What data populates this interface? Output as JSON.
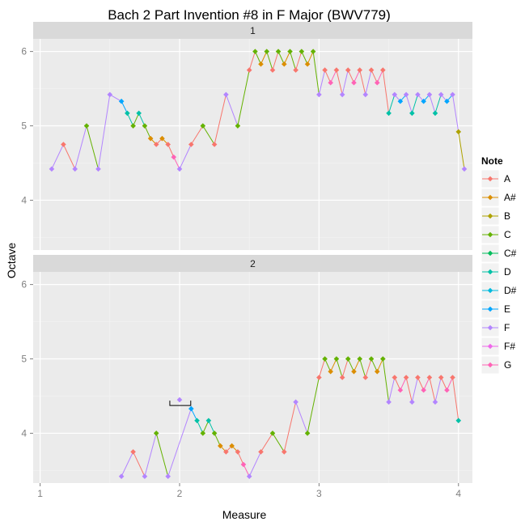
{
  "chart_data": {
    "type": "line",
    "title": "Bach 2 Part Invention #8 in F Major (BWV779)",
    "xlabel": "Measure",
    "ylabel": "Octave",
    "xlim": [
      0.95,
      4.1
    ],
    "ylim": [
      3.33,
      6.17
    ],
    "xticks": [
      "1",
      "2",
      "3",
      "4"
    ],
    "xtick_values": [
      1,
      2,
      3,
      4
    ],
    "yticks": [
      "4",
      "5",
      "6"
    ],
    "ytick_values": [
      4,
      5,
      6
    ],
    "grid": true,
    "legend": {
      "title": "Note",
      "position": "right",
      "entries": [
        {
          "label": "A",
          "color": "#F8766D"
        },
        {
          "label": "A#",
          "color": "#DB8E00"
        },
        {
          "label": "B",
          "color": "#AEA200"
        },
        {
          "label": "C",
          "color": "#64B200"
        },
        {
          "label": "C#",
          "color": "#00BD5C"
        },
        {
          "label": "D",
          "color": "#00C1A7"
        },
        {
          "label": "D#",
          "color": "#00BADE"
        },
        {
          "label": "E",
          "color": "#00A6FF"
        },
        {
          "label": "F",
          "color": "#B385FF"
        },
        {
          "label": "F#",
          "color": "#EF67EB"
        },
        {
          "label": "G",
          "color": "#FF63B6"
        }
      ]
    },
    "panels": [
      {
        "strip": "1",
        "points": [
          {
            "x": 1.083,
            "y": 4.42,
            "note": "F"
          },
          {
            "x": 1.167,
            "y": 4.75,
            "note": "A"
          },
          {
            "x": 1.25,
            "y": 4.42,
            "note": "F"
          },
          {
            "x": 1.333,
            "y": 5.0,
            "note": "C"
          },
          {
            "x": 1.417,
            "y": 4.42,
            "note": "F"
          },
          {
            "x": 1.5,
            "y": 5.42,
            "note": "F"
          },
          {
            "x": 1.583,
            "y": 5.33,
            "note": "E"
          },
          {
            "x": 1.625,
            "y": 5.17,
            "note": "D"
          },
          {
            "x": 1.667,
            "y": 5.0,
            "note": "C"
          },
          {
            "x": 1.708,
            "y": 5.17,
            "note": "D"
          },
          {
            "x": 1.75,
            "y": 5.0,
            "note": "C"
          },
          {
            "x": 1.792,
            "y": 4.83,
            "note": "A#"
          },
          {
            "x": 1.833,
            "y": 4.75,
            "note": "A"
          },
          {
            "x": 1.875,
            "y": 4.83,
            "note": "A#"
          },
          {
            "x": 1.917,
            "y": 4.75,
            "note": "A"
          },
          {
            "x": 1.958,
            "y": 4.58,
            "note": "G"
          },
          {
            "x": 2.0,
            "y": 4.42,
            "note": "F"
          },
          {
            "x": 2.083,
            "y": 4.75,
            "note": "A"
          },
          {
            "x": 2.167,
            "y": 5.0,
            "note": "C"
          },
          {
            "x": 2.25,
            "y": 4.75,
            "note": "A"
          },
          {
            "x": 2.333,
            "y": 5.42,
            "note": "F"
          },
          {
            "x": 2.417,
            "y": 5.0,
            "note": "C"
          },
          {
            "x": 2.5,
            "y": 5.75,
            "note": "A"
          },
          {
            "x": 2.542,
            "y": 6.0,
            "note": "C"
          },
          {
            "x": 2.583,
            "y": 5.83,
            "note": "A#"
          },
          {
            "x": 2.625,
            "y": 6.0,
            "note": "C"
          },
          {
            "x": 2.667,
            "y": 5.75,
            "note": "A"
          },
          {
            "x": 2.708,
            "y": 6.0,
            "note": "C"
          },
          {
            "x": 2.75,
            "y": 5.83,
            "note": "A#"
          },
          {
            "x": 2.792,
            "y": 6.0,
            "note": "C"
          },
          {
            "x": 2.833,
            "y": 5.75,
            "note": "A"
          },
          {
            "x": 2.875,
            "y": 6.0,
            "note": "C"
          },
          {
            "x": 2.917,
            "y": 5.83,
            "note": "A#"
          },
          {
            "x": 2.958,
            "y": 6.0,
            "note": "C"
          },
          {
            "x": 3.0,
            "y": 5.42,
            "note": "F"
          },
          {
            "x": 3.042,
            "y": 5.75,
            "note": "A"
          },
          {
            "x": 3.083,
            "y": 5.58,
            "note": "G"
          },
          {
            "x": 3.125,
            "y": 5.75,
            "note": "A"
          },
          {
            "x": 3.167,
            "y": 5.42,
            "note": "F"
          },
          {
            "x": 3.208,
            "y": 5.75,
            "note": "A"
          },
          {
            "x": 3.25,
            "y": 5.58,
            "note": "G"
          },
          {
            "x": 3.292,
            "y": 5.75,
            "note": "A"
          },
          {
            "x": 3.333,
            "y": 5.42,
            "note": "F"
          },
          {
            "x": 3.375,
            "y": 5.75,
            "note": "A"
          },
          {
            "x": 3.417,
            "y": 5.58,
            "note": "G"
          },
          {
            "x": 3.458,
            "y": 5.75,
            "note": "A"
          },
          {
            "x": 3.5,
            "y": 5.17,
            "note": "D"
          },
          {
            "x": 3.542,
            "y": 5.42,
            "note": "F"
          },
          {
            "x": 3.583,
            "y": 5.33,
            "note": "E"
          },
          {
            "x": 3.625,
            "y": 5.42,
            "note": "F"
          },
          {
            "x": 3.667,
            "y": 5.17,
            "note": "D"
          },
          {
            "x": 3.708,
            "y": 5.42,
            "note": "F"
          },
          {
            "x": 3.75,
            "y": 5.33,
            "note": "E"
          },
          {
            "x": 3.792,
            "y": 5.42,
            "note": "F"
          },
          {
            "x": 3.833,
            "y": 5.17,
            "note": "D"
          },
          {
            "x": 3.875,
            "y": 5.42,
            "note": "F"
          },
          {
            "x": 3.917,
            "y": 5.33,
            "note": "E"
          },
          {
            "x": 3.958,
            "y": 5.42,
            "note": "F"
          },
          {
            "x": 4.0,
            "y": 4.92,
            "note": "B"
          },
          {
            "x": 4.042,
            "y": 4.42,
            "note": "F"
          }
        ]
      },
      {
        "strip": "2",
        "points": [
          {
            "x": 1.583,
            "y": 3.42,
            "note": "F"
          },
          {
            "x": 1.667,
            "y": 3.75,
            "note": "A"
          },
          {
            "x": 1.75,
            "y": 3.42,
            "note": "F"
          },
          {
            "x": 1.833,
            "y": 4.0,
            "note": "C"
          },
          {
            "x": 1.917,
            "y": 3.42,
            "note": "F"
          },
          {
            "x": 2.083,
            "y": 4.33,
            "note": "E"
          },
          {
            "x": 2.125,
            "y": 4.17,
            "note": "D"
          },
          {
            "x": 2.167,
            "y": 4.0,
            "note": "C"
          },
          {
            "x": 2.208,
            "y": 4.17,
            "note": "D"
          },
          {
            "x": 2.25,
            "y": 4.0,
            "note": "C"
          },
          {
            "x": 2.292,
            "y": 3.83,
            "note": "A#"
          },
          {
            "x": 2.333,
            "y": 3.75,
            "note": "A"
          },
          {
            "x": 2.375,
            "y": 3.83,
            "note": "A#"
          },
          {
            "x": 2.417,
            "y": 3.75,
            "note": "A"
          },
          {
            "x": 2.458,
            "y": 3.58,
            "note": "G"
          },
          {
            "x": 2.5,
            "y": 3.42,
            "note": "F"
          },
          {
            "x": 2.583,
            "y": 3.75,
            "note": "A"
          },
          {
            "x": 2.667,
            "y": 4.0,
            "note": "C"
          },
          {
            "x": 2.75,
            "y": 3.75,
            "note": "A"
          },
          {
            "x": 2.833,
            "y": 4.42,
            "note": "F"
          },
          {
            "x": 2.917,
            "y": 4.0,
            "note": "C"
          },
          {
            "x": 3.0,
            "y": 4.75,
            "note": "A"
          },
          {
            "x": 3.042,
            "y": 5.0,
            "note": "C"
          },
          {
            "x": 3.083,
            "y": 4.83,
            "note": "A#"
          },
          {
            "x": 3.125,
            "y": 5.0,
            "note": "C"
          },
          {
            "x": 3.167,
            "y": 4.75,
            "note": "A"
          },
          {
            "x": 3.208,
            "y": 5.0,
            "note": "C"
          },
          {
            "x": 3.25,
            "y": 4.83,
            "note": "A#"
          },
          {
            "x": 3.292,
            "y": 5.0,
            "note": "C"
          },
          {
            "x": 3.333,
            "y": 4.75,
            "note": "A"
          },
          {
            "x": 3.375,
            "y": 5.0,
            "note": "C"
          },
          {
            "x": 3.417,
            "y": 4.83,
            "note": "A#"
          },
          {
            "x": 3.458,
            "y": 5.0,
            "note": "C"
          },
          {
            "x": 3.5,
            "y": 4.42,
            "note": "F"
          },
          {
            "x": 3.542,
            "y": 4.75,
            "note": "A"
          },
          {
            "x": 3.583,
            "y": 4.58,
            "note": "G"
          },
          {
            "x": 3.625,
            "y": 4.75,
            "note": "A"
          },
          {
            "x": 3.667,
            "y": 4.42,
            "note": "F"
          },
          {
            "x": 3.708,
            "y": 4.75,
            "note": "A"
          },
          {
            "x": 3.75,
            "y": 4.58,
            "note": "G"
          },
          {
            "x": 3.792,
            "y": 4.75,
            "note": "A"
          },
          {
            "x": 3.833,
            "y": 4.42,
            "note": "F"
          },
          {
            "x": 3.875,
            "y": 4.75,
            "note": "A"
          },
          {
            "x": 3.917,
            "y": 4.58,
            "note": "G"
          },
          {
            "x": 3.958,
            "y": 4.75,
            "note": "A"
          },
          {
            "x": 4.0,
            "y": 4.17,
            "note": "D"
          }
        ],
        "annotation": {
          "note": "F",
          "x": 2.0,
          "y": 4.45,
          "bracket_from": 1.93,
          "bracket_to": 2.08
        }
      }
    ]
  }
}
